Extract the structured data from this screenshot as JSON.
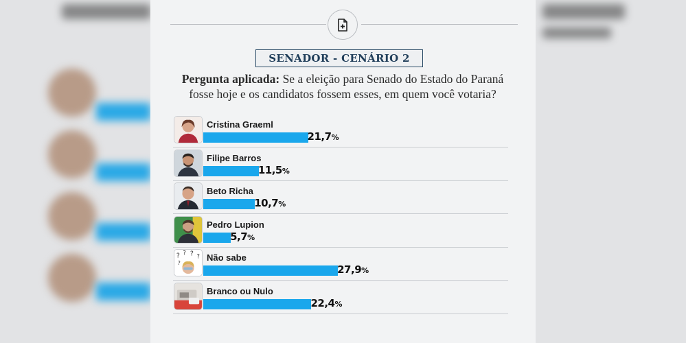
{
  "header": {
    "title": "SENADOR - CENÁRIO 2",
    "question_label": "Pergunta aplicada:",
    "question_text": " Se a eleição para Senado do Estado do Paraná fosse hoje e os candidatos fossem esses, em quem você votaria?"
  },
  "icons": {
    "top": "add-document-icon"
  },
  "colors": {
    "bar": "#1aa7ec",
    "title_border": "#2a4a66"
  },
  "chart_data": {
    "type": "bar",
    "orientation": "horizontal",
    "title": "SENADOR - CENÁRIO 2",
    "categories": [
      "Cristina Graeml",
      "Filipe Barros",
      "Beto Richa",
      "Pedro Lupion",
      "Não sabe",
      "Branco ou Nulo"
    ],
    "values": [
      21.7,
      11.5,
      10.7,
      5.7,
      27.9,
      22.4
    ],
    "value_labels": [
      "21,7",
      "11,5",
      "10,7",
      "5,7",
      "27,9",
      "22,4"
    ],
    "unit": "%",
    "xlim": [
      0,
      30
    ]
  }
}
